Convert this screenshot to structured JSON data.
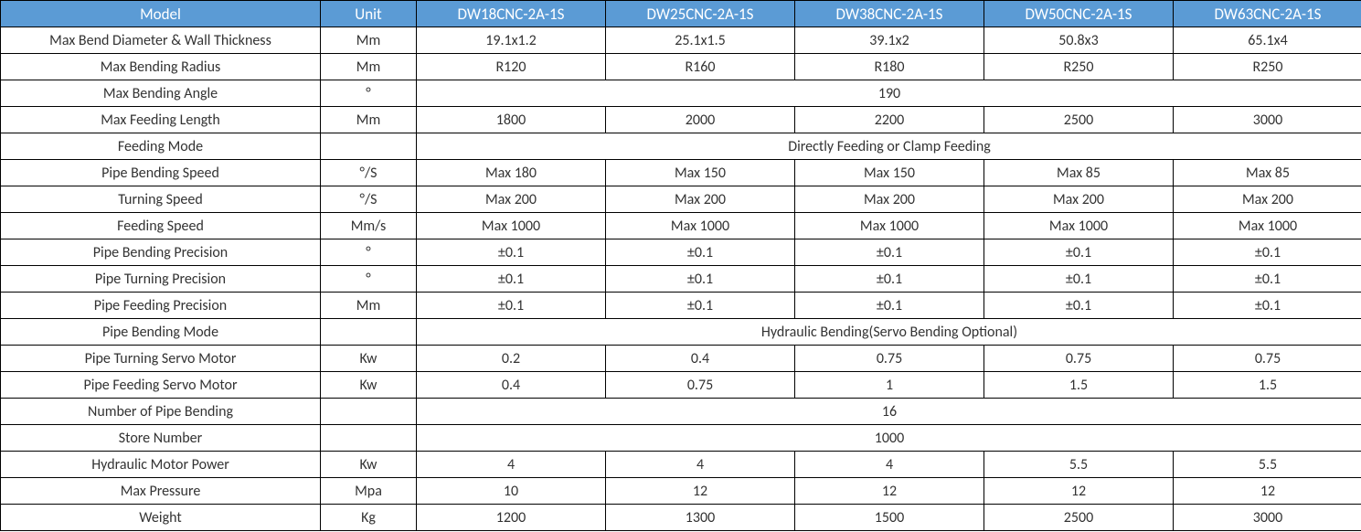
{
  "table": {
    "header_bg": "#5b9bd5",
    "header_color": "#ffffff",
    "border_color": "#000000",
    "text_color": "#333333",
    "font_family": "Calibri, Arial, sans-serif",
    "header_fontsize": 17,
    "cell_fontsize": 16,
    "columns": {
      "label": "Model",
      "unit": "Unit",
      "models": [
        "DW18CNC-2A-1S",
        "DW25CNC-2A-1S",
        "DW38CNC-2A-1S",
        "DW50CNC-2A-1S",
        "DW63CNC-2A-1S"
      ]
    },
    "rows": [
      {
        "label": "Max Bend Diameter & Wall Thickness",
        "unit": "Mm",
        "values": [
          "19.1x1.2",
          "25.1x1.5",
          "39.1x2",
          "50.8x3",
          "65.1x4"
        ]
      },
      {
        "label": "Max Bending Radius",
        "unit": "Mm",
        "values": [
          "R120",
          "R160",
          "R180",
          "R250",
          "R250"
        ]
      },
      {
        "label": "Max Bending Angle",
        "unit": "°",
        "merged": "190"
      },
      {
        "label": "Max Feeding Length",
        "unit": "Mm",
        "values": [
          "1800",
          "2000",
          "2200",
          "2500",
          "3000"
        ]
      },
      {
        "label": "Feeding Mode",
        "unit": "",
        "merged": "Directly Feeding or Clamp Feeding"
      },
      {
        "label": "Pipe Bending Speed",
        "unit": "°/S",
        "values": [
          "Max 180",
          "Max 150",
          "Max 150",
          "Max 85",
          "Max 85"
        ]
      },
      {
        "label": "Turning Speed",
        "unit": "°/S",
        "values": [
          "Max 200",
          "Max 200",
          "Max 200",
          "Max 200",
          "Max 200"
        ]
      },
      {
        "label": "Feeding Speed",
        "unit": "Mm/s",
        "values": [
          "Max 1000",
          "Max 1000",
          "Max 1000",
          "Max 1000",
          "Max 1000"
        ]
      },
      {
        "label": "Pipe Bending Precision",
        "unit": "°",
        "values": [
          "±0.1",
          "±0.1",
          "±0.1",
          "±0.1",
          "±0.1"
        ]
      },
      {
        "label": "Pipe Turning Precision",
        "unit": "°",
        "values": [
          "±0.1",
          "±0.1",
          "±0.1",
          "±0.1",
          "±0.1"
        ]
      },
      {
        "label": "Pipe Feeding Precision",
        "unit": "Mm",
        "values": [
          "±0.1",
          "±0.1",
          "±0.1",
          "±0.1",
          "±0.1"
        ]
      },
      {
        "label": "Pipe Bending Mode",
        "unit": "",
        "merged": "Hydraulic Bending(Servo Bending Optional)"
      },
      {
        "label": "Pipe Turning Servo Motor",
        "unit": "Kw",
        "values": [
          "0.2",
          "0.4",
          "0.75",
          "0.75",
          "0.75"
        ]
      },
      {
        "label": "Pipe Feeding Servo Motor",
        "unit": "Kw",
        "values": [
          "0.4",
          "0.75",
          "1",
          "1.5",
          "1.5"
        ]
      },
      {
        "label": "Number of Pipe Bending",
        "unit": "",
        "merged": "16"
      },
      {
        "label": "Store Number",
        "unit": "",
        "merged": "1000"
      },
      {
        "label": "Hydraulic Motor Power",
        "unit": "Kw",
        "values": [
          "4",
          "4",
          "4",
          "5.5",
          "5.5"
        ]
      },
      {
        "label": "Max Pressure",
        "unit": "Mpa",
        "values": [
          "10",
          "12",
          "12",
          "12",
          "12"
        ]
      },
      {
        "label": "Weight",
        "unit": "Kg",
        "values": [
          "1200",
          "1300",
          "1500",
          "2500",
          "3000"
        ]
      }
    ]
  }
}
